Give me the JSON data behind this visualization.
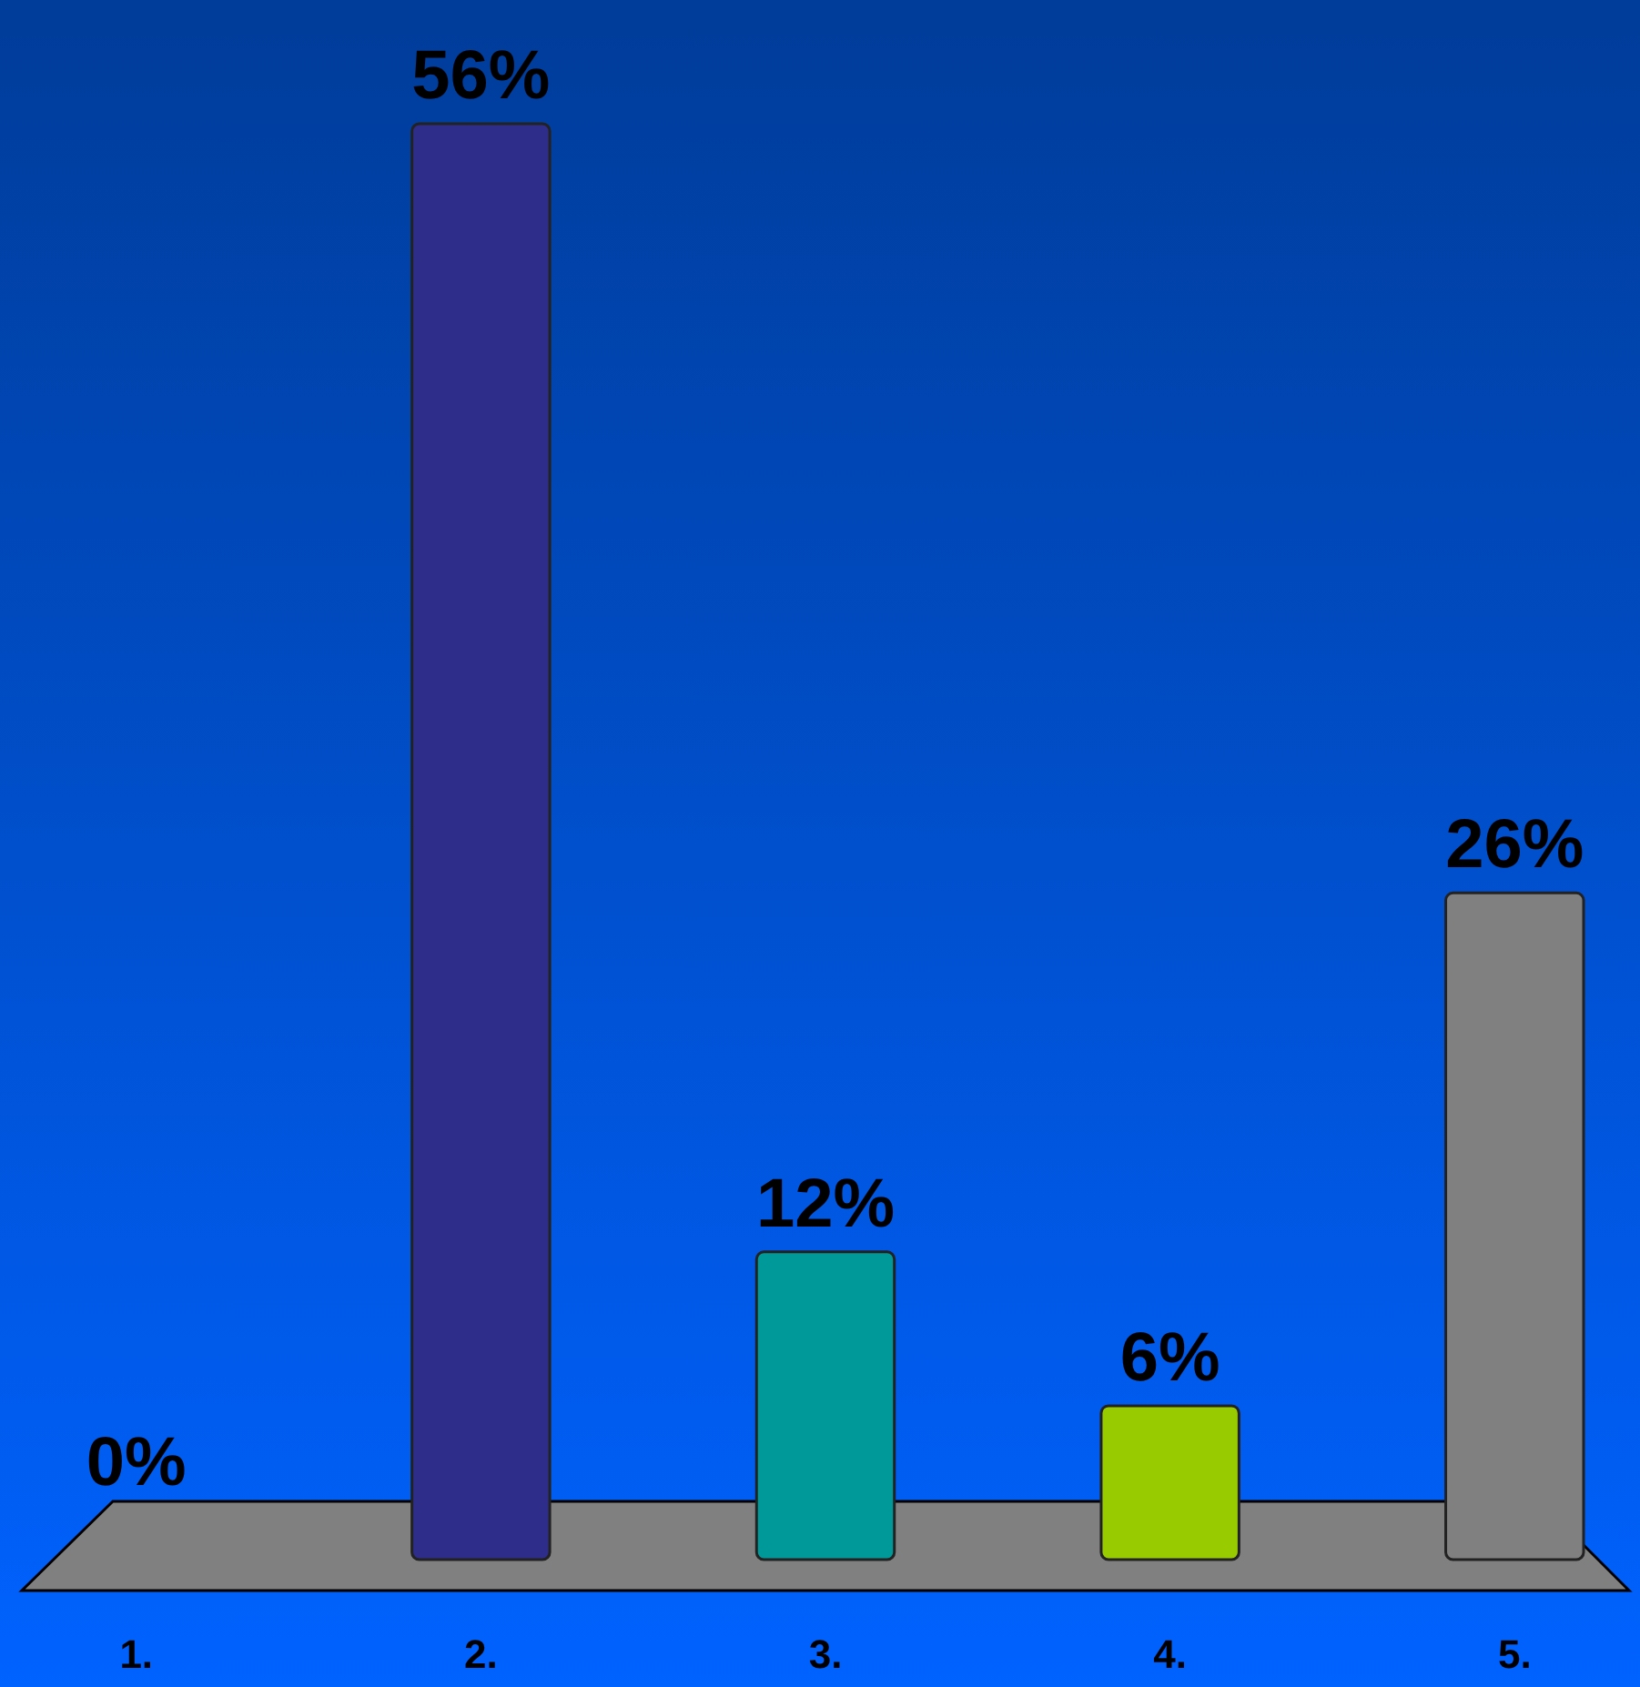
{
  "chart_data": {
    "type": "bar",
    "categories": [
      "1.",
      "2.",
      "3.",
      "4.",
      "5."
    ],
    "values": [
      0,
      56,
      12,
      6,
      26
    ],
    "colors": [
      "#a6c4c4",
      "#2e2e8a",
      "#009999",
      "#99cc00",
      "#808080"
    ],
    "value_labels": [
      "0%",
      "56%",
      "12%",
      "6%",
      "26%"
    ]
  }
}
